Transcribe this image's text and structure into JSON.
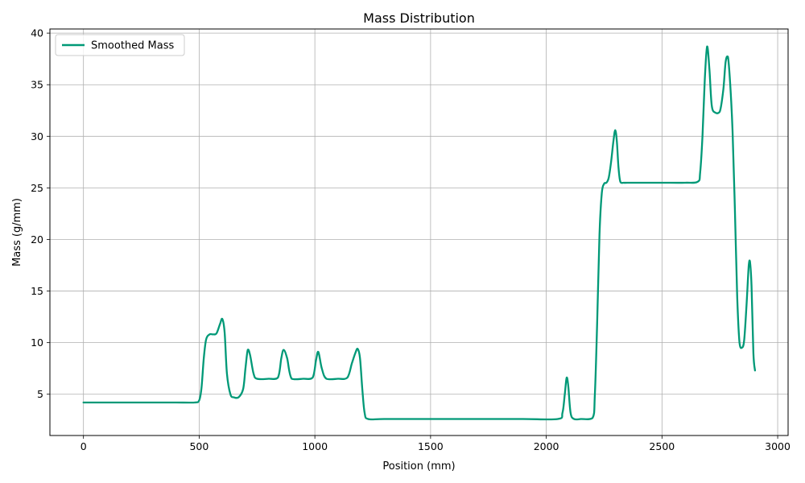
{
  "chart_data": {
    "type": "line",
    "title": "Mass Distribution",
    "xlabel": "Position (mm)",
    "ylabel": "Mass (g/mm)",
    "xlim": [
      -145,
      3045
    ],
    "ylim": [
      1.0,
      40.4
    ],
    "xticks": [
      0,
      500,
      1000,
      1500,
      2000,
      2500,
      3000
    ],
    "yticks": [
      5,
      10,
      15,
      20,
      25,
      30,
      35,
      40
    ],
    "grid": true,
    "legend_position": "top-left",
    "series": [
      {
        "name": "Smoothed Mass",
        "color": "#009977",
        "x": [
          0,
          100,
          200,
          300,
          400,
          480,
          500,
          510,
          520,
          530,
          545,
          560,
          575,
          590,
          600,
          610,
          620,
          635,
          650,
          670,
          690,
          700,
          710,
          720,
          735,
          750,
          800,
          840,
          855,
          865,
          880,
          900,
          950,
          990,
          1005,
          1015,
          1030,
          1050,
          1100,
          1140,
          1160,
          1175,
          1185,
          1195,
          1205,
          1215,
          1230,
          1300,
          1500,
          1700,
          1900,
          2050,
          2070,
          2080,
          2088,
          2095,
          2105,
          2120,
          2150,
          2200,
          2210,
          2220,
          2230,
          2240,
          2250,
          2260,
          2270,
          2280,
          2290,
          2298,
          2305,
          2312,
          2320,
          2335,
          2350,
          2400,
          2500,
          2600,
          2655,
          2665,
          2675,
          2685,
          2695,
          2705,
          2715,
          2730,
          2750,
          2765,
          2775,
          2785,
          2795,
          2805,
          2815,
          2825,
          2835,
          2845,
          2855,
          2865,
          2875,
          2880,
          2887,
          2895,
          2902
        ],
        "y": [
          4.2,
          4.2,
          4.2,
          4.2,
          4.2,
          4.2,
          4.4,
          5.6,
          8.5,
          10.3,
          10.8,
          10.8,
          10.9,
          11.8,
          12.3,
          11.0,
          7.0,
          5.0,
          4.7,
          4.7,
          5.5,
          7.5,
          9.3,
          8.8,
          7.0,
          6.5,
          6.5,
          6.6,
          8.5,
          9.3,
          8.5,
          6.5,
          6.5,
          6.6,
          8.3,
          9.1,
          7.5,
          6.5,
          6.5,
          6.6,
          8.0,
          9.0,
          9.4,
          8.5,
          5.5,
          3.2,
          2.6,
          2.6,
          2.6,
          2.6,
          2.6,
          2.6,
          3.2,
          5.0,
          6.6,
          5.8,
          3.2,
          2.6,
          2.6,
          2.7,
          5.0,
          12.0,
          20.5,
          24.5,
          25.4,
          25.5,
          26.0,
          27.5,
          29.5,
          30.6,
          29.5,
          27.0,
          25.6,
          25.5,
          25.5,
          25.5,
          25.5,
          25.5,
          25.6,
          26.5,
          30.0,
          35.5,
          38.7,
          36.5,
          33.0,
          32.3,
          32.4,
          34.5,
          37.2,
          37.7,
          35.0,
          30.5,
          23.0,
          14.5,
          10.0,
          9.5,
          10.2,
          13.5,
          17.5,
          17.9,
          15.5,
          9.0,
          7.3
        ]
      }
    ]
  }
}
